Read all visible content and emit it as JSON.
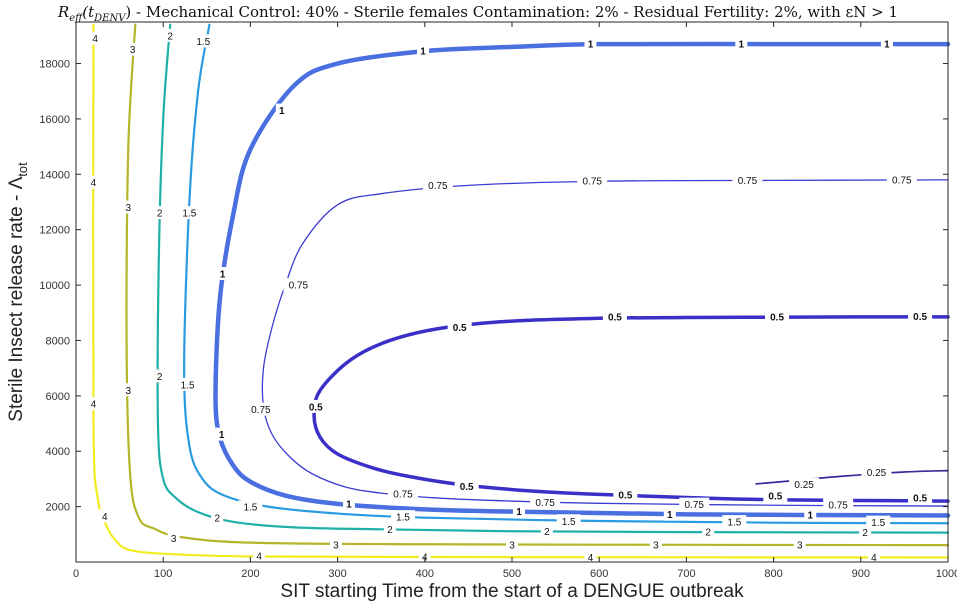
{
  "chart_data": {
    "type": "contour",
    "title_parts": [
      {
        "text": "R",
        "style": "italic-cal"
      },
      {
        "text": "eff",
        "style": "sub"
      },
      {
        "text": "(t",
        "style": "italic"
      },
      {
        "text": "DENV",
        "style": "sub"
      },
      {
        "text": ") - Mechanical Control: 40% - Sterile females Contamination: 2% - Residual Fertility: 2%, with εN > 1",
        "style": "normal"
      }
    ],
    "xlabel": "SIT starting Time from the start of a DENGUE outbreak",
    "ylabel_main": "Sterile Insect release rate - Λ",
    "ylabel_sub": "tot",
    "xlim": [
      0,
      1000
    ],
    "ylim": [
      0,
      19500
    ],
    "xticks": [
      0,
      100,
      200,
      300,
      400,
      500,
      600,
      700,
      800,
      900,
      1000
    ],
    "yticks": [
      2000,
      4000,
      6000,
      8000,
      10000,
      12000,
      14000,
      16000,
      18000
    ],
    "levels": [
      {
        "level": "4",
        "color": "#f2ec1e",
        "width": 2.2,
        "points": [
          [
            20,
            19400
          ],
          [
            20,
            5200
          ],
          [
            25,
            2300
          ],
          [
            35,
            1300
          ],
          [
            45,
            800
          ],
          [
            60,
            450
          ],
          [
            100,
            300
          ],
          [
            200,
            200
          ],
          [
            400,
            180
          ],
          [
            700,
            170
          ],
          [
            1000,
            165
          ]
        ],
        "labels": [
          [
            22,
            18900
          ],
          [
            20,
            13700
          ],
          [
            20,
            5700
          ],
          [
            33,
            1650
          ],
          [
            210,
            210
          ],
          [
            400,
            180
          ],
          [
            590,
            170
          ],
          [
            915,
            165
          ]
        ]
      },
      {
        "level": "3",
        "color": "#b5b52a",
        "width": 2.2,
        "points": [
          [
            68,
            19400
          ],
          [
            60,
            15000
          ],
          [
            58,
            8000
          ],
          [
            62,
            3200
          ],
          [
            72,
            1600
          ],
          [
            90,
            1200
          ],
          [
            120,
            900
          ],
          [
            200,
            700
          ],
          [
            400,
            640
          ],
          [
            700,
            620
          ],
          [
            1000,
            610
          ]
        ],
        "labels": [
          [
            65,
            18500
          ],
          [
            60,
            12800
          ],
          [
            60,
            6200
          ],
          [
            112,
            850
          ],
          [
            298,
            620
          ],
          [
            500,
            615
          ],
          [
            665,
            615
          ],
          [
            830,
            610
          ]
        ]
      },
      {
        "level": "2",
        "color": "#1fb0a9",
        "width": 2.2,
        "points": [
          [
            108,
            19400
          ],
          [
            100,
            16000
          ],
          [
            95,
            11000
          ],
          [
            94,
            5000
          ],
          [
            100,
            3000
          ],
          [
            115,
            2300
          ],
          [
            140,
            1800
          ],
          [
            180,
            1450
          ],
          [
            250,
            1250
          ],
          [
            350,
            1180
          ],
          [
            500,
            1110
          ],
          [
            700,
            1080
          ],
          [
            1000,
            1060
          ]
        ],
        "labels": [
          [
            108,
            19000
          ],
          [
            96,
            12600
          ],
          [
            96,
            6700
          ],
          [
            162,
            1580
          ],
          [
            360,
            1170
          ],
          [
            540,
            1110
          ],
          [
            725,
            1080
          ],
          [
            905,
            1065
          ]
        ]
      },
      {
        "level": "1.5",
        "color": "#2a9be0",
        "width": 2.2,
        "points": [
          [
            153,
            19400
          ],
          [
            140,
            17000
          ],
          [
            130,
            13000
          ],
          [
            124,
            7000
          ],
          [
            130,
            4200
          ],
          [
            145,
            3000
          ],
          [
            170,
            2400
          ],
          [
            220,
            2000
          ],
          [
            300,
            1750
          ],
          [
            400,
            1600
          ],
          [
            600,
            1480
          ],
          [
            800,
            1420
          ],
          [
            1000,
            1400
          ]
        ],
        "labels": [
          [
            146,
            18800
          ],
          [
            130,
            12600
          ],
          [
            128,
            6400
          ],
          [
            200,
            1980
          ],
          [
            375,
            1620
          ],
          [
            565,
            1470
          ],
          [
            755,
            1440
          ],
          [
            920,
            1420
          ]
        ]
      },
      {
        "level": "1",
        "color": "#4a6fe0",
        "width": 4.5,
        "points": [
          [
            1000,
            18700
          ],
          [
            800,
            18700
          ],
          [
            600,
            18700
          ],
          [
            500,
            18600
          ],
          [
            400,
            18450
          ],
          [
            300,
            18000
          ],
          [
            250,
            17200
          ],
          [
            200,
            14900
          ],
          [
            180,
            12500
          ],
          [
            165,
            9500
          ],
          [
            160,
            6000
          ],
          [
            165,
            4500
          ],
          [
            180,
            3500
          ],
          [
            200,
            2900
          ],
          [
            240,
            2400
          ],
          [
            300,
            2100
          ],
          [
            400,
            1900
          ],
          [
            500,
            1820
          ],
          [
            700,
            1720
          ],
          [
            1000,
            1680
          ]
        ],
        "labels": [
          [
            398,
            18450
          ],
          [
            590,
            18700
          ],
          [
            763,
            18700
          ],
          [
            930,
            18700
          ],
          [
            236,
            16300
          ],
          [
            168,
            10400
          ],
          [
            167,
            4600
          ],
          [
            313,
            2100
          ],
          [
            508,
            1820
          ],
          [
            681,
            1710
          ],
          [
            842,
            1690
          ]
        ]
      },
      {
        "level": "0.75",
        "color": "#3c3cd1",
        "width": 1.3,
        "points": [
          [
            1000,
            13800
          ],
          [
            800,
            13780
          ],
          [
            600,
            13750
          ],
          [
            450,
            13600
          ],
          [
            350,
            13300
          ],
          [
            300,
            12900
          ],
          [
            260,
            11500
          ],
          [
            240,
            10000
          ],
          [
            225,
            8500
          ],
          [
            215,
            7000
          ],
          [
            215,
            5600
          ],
          [
            225,
            4600
          ],
          [
            245,
            3800
          ],
          [
            270,
            3200
          ],
          [
            310,
            2700
          ],
          [
            360,
            2450
          ],
          [
            420,
            2300
          ],
          [
            500,
            2200
          ],
          [
            600,
            2120
          ],
          [
            800,
            2050
          ],
          [
            1000,
            2020
          ]
        ],
        "labels": [
          [
            415,
            13600
          ],
          [
            592,
            13750
          ],
          [
            770,
            13780
          ],
          [
            947,
            13800
          ],
          [
            255,
            10000
          ],
          [
            212,
            5500
          ],
          [
            375,
            2450
          ],
          [
            538,
            2150
          ],
          [
            709,
            2070
          ],
          [
            874,
            2050
          ]
        ]
      },
      {
        "level": "0.5",
        "color": "#3a30c8",
        "width": 3.5,
        "points": [
          [
            1000,
            8850
          ],
          [
            900,
            8850
          ],
          [
            800,
            8840
          ],
          [
            700,
            8830
          ],
          [
            600,
            8800
          ],
          [
            500,
            8700
          ],
          [
            420,
            8450
          ],
          [
            360,
            8000
          ],
          [
            315,
            7300
          ],
          [
            280,
            6200
          ],
          [
            273,
            5300
          ],
          [
            280,
            4500
          ],
          [
            300,
            3900
          ],
          [
            340,
            3400
          ],
          [
            380,
            3100
          ],
          [
            440,
            2800
          ],
          [
            520,
            2570
          ],
          [
            600,
            2440
          ],
          [
            700,
            2330
          ],
          [
            800,
            2250
          ],
          [
            1000,
            2200
          ]
        ],
        "labels": [
          [
            440,
            8470
          ],
          [
            618,
            8840
          ],
          [
            804,
            8850
          ],
          [
            968,
            8860
          ],
          [
            275,
            5600
          ],
          [
            448,
            2720
          ],
          [
            630,
            2420
          ],
          [
            802,
            2380
          ],
          [
            968,
            2320
          ]
        ]
      },
      {
        "level": "0.25",
        "color": "#3b2a9a",
        "width": 1.7,
        "points": [
          [
            780,
            2820
          ],
          [
            820,
            2930
          ],
          [
            880,
            3100
          ],
          [
            950,
            3250
          ],
          [
            1000,
            3300
          ]
        ],
        "labels": [
          [
            918,
            3230
          ],
          [
            835,
            2790
          ]
        ]
      }
    ]
  }
}
